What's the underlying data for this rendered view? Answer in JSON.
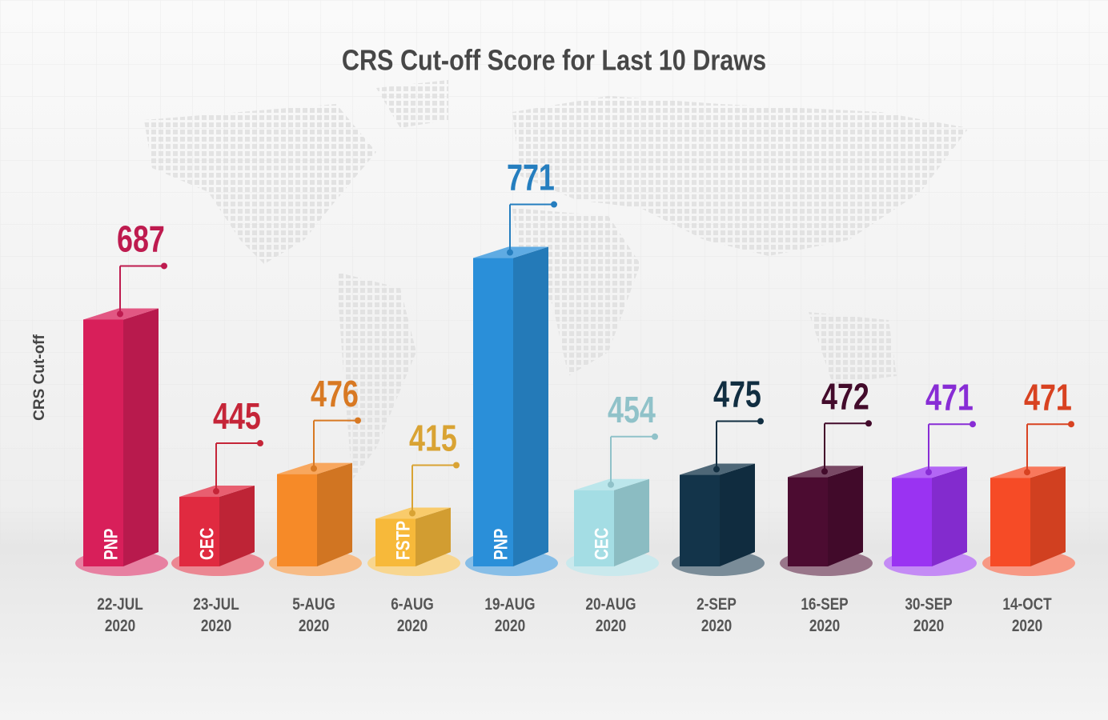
{
  "chart_data": {
    "type": "bar3d",
    "title": "CRS Cut-off Score for Last 10 Draws",
    "y_label": "CRS Cut-off",
    "categories": [
      "22-JUL 2020",
      "23-JUL 2020",
      "5-AUG 2020",
      "6-AUG 2020",
      "19-AUG 2020",
      "20-AUG 2020",
      "2-SEP 2020",
      "16-SEP 2020",
      "30-SEP 2020",
      "14-OCT 2020"
    ],
    "values": [
      687,
      445,
      476,
      415,
      771,
      454,
      475,
      472,
      471,
      471
    ],
    "program_labels": [
      "PNP",
      "CEC",
      null,
      "FSTP",
      "PNP",
      "CEC",
      null,
      null,
      null,
      null
    ],
    "colors": [
      "#d81f5a",
      "#e02a40",
      "#f68a28",
      "#f7b93a",
      "#2a8fd9",
      "#a4dde4",
      "#13344a",
      "#4c0c31",
      "#9a33f2",
      "#f64b26"
    ],
    "ylim": [
      350,
      800
    ]
  }
}
